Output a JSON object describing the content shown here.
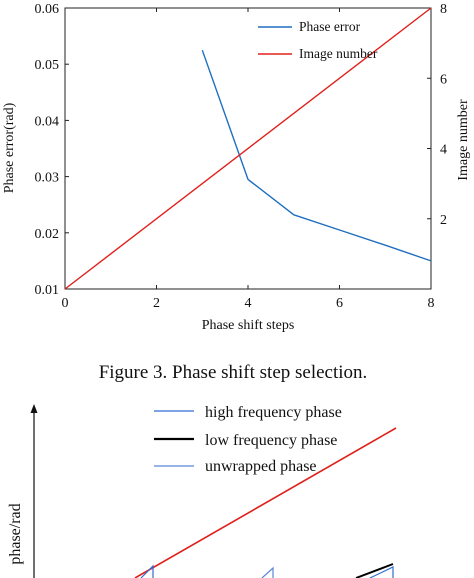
{
  "chart_data": [
    {
      "type": "line",
      "xlabel": "Phase shift steps",
      "ylabel": "Phase error(rad)",
      "y2label": "Image number",
      "xlim": [
        0,
        8
      ],
      "ylim": [
        0.01,
        0.06
      ],
      "y2lim": [
        0,
        8
      ],
      "xticks": [
        "0",
        "2",
        "4",
        "6",
        "8"
      ],
      "yticks": [
        "0.01",
        "0.02",
        "0.03",
        "0.04",
        "0.05",
        "0.06"
      ],
      "y2ticks": [
        "2",
        "4",
        "6",
        "8"
      ],
      "legend_position": "top-right",
      "series": [
        {
          "name": "Phase error",
          "axis": "left",
          "color": "#1f6fbf",
          "x": [
            3,
            4,
            5,
            6,
            7,
            8
          ],
          "y": [
            0.0525,
            0.0295,
            0.0232,
            0.0205,
            0.0178,
            0.015
          ]
        },
        {
          "name": "Image number",
          "axis": "right",
          "color": "#e0201b",
          "x": [
            0,
            8
          ],
          "y": [
            0,
            8
          ]
        }
      ]
    },
    {
      "type": "line",
      "ylabel": "phase/rad",
      "series": [
        {
          "name": "high frequency phase",
          "color": "#2f6ed3"
        },
        {
          "name": "low frequency phase",
          "color": "#000000"
        },
        {
          "name": "unwrapped phase",
          "color": "#5a86d8"
        }
      ]
    }
  ],
  "caption": "Figure 3. Phase shift step selection.",
  "colors": {
    "phase_error": "#1f6fbf",
    "image_number": "#e0201b",
    "red_line": "#e0201b",
    "high_freq": "#2f6ed3",
    "low_freq": "#000000",
    "unwrapped": "#5a86d8"
  }
}
